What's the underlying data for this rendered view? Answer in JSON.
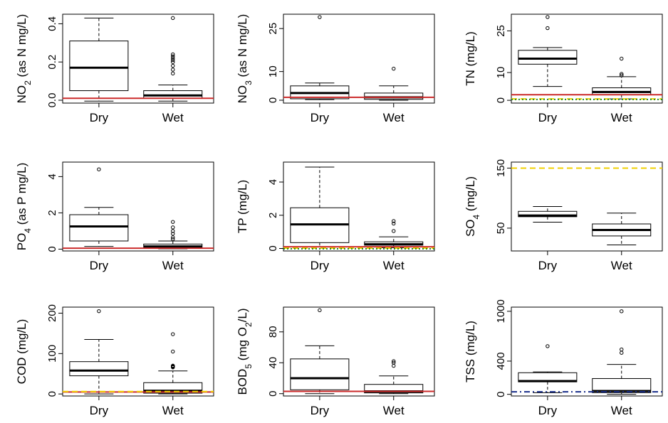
{
  "chart_data": [
    {
      "type": "boxplot",
      "ylabel_main": "NO",
      "ylabel_sub": "2",
      "ylabel_tail": " (as N mg/L)",
      "categories": [
        "Dry",
        "Wet"
      ],
      "yticks": [
        0.0,
        0.2,
        0.4
      ],
      "ytick_labels": [
        "0.0",
        "0.2",
        "0.4"
      ],
      "ylim": [
        -0.015,
        0.45
      ],
      "boxes": [
        {
          "category": "Dry",
          "whisker_low": -0.005,
          "q1": 0.05,
          "median": 0.17,
          "q3": 0.31,
          "whisker_high": 0.43,
          "outliers": []
        },
        {
          "category": "Wet",
          "whisker_low": -0.005,
          "q1": 0.01,
          "median": 0.025,
          "q3": 0.05,
          "whisker_high": 0.08,
          "outliers": [
            0.14,
            0.16,
            0.18,
            0.2,
            0.21,
            0.22,
            0.23,
            0.24,
            0.43
          ]
        }
      ],
      "reference_lines": [
        {
          "value": 0.01,
          "color": "#cc2b2b",
          "style": "solid"
        }
      ]
    },
    {
      "type": "boxplot",
      "ylabel_main": "NO",
      "ylabel_sub": "3",
      "ylabel_tail": " (as N mg/L)",
      "categories": [
        "Dry",
        "Wet"
      ],
      "yticks": [
        0,
        10,
        25
      ],
      "ytick_labels": [
        "0",
        "10",
        "25"
      ],
      "ylim": [
        -1,
        30
      ],
      "boxes": [
        {
          "category": "Dry",
          "whisker_low": 0.2,
          "q1": 0.5,
          "median": 2.5,
          "q3": 5,
          "whisker_high": 6,
          "outliers": [
            29
          ]
        },
        {
          "category": "Wet",
          "whisker_low": 0,
          "q1": 0.3,
          "median": 1,
          "q3": 2.5,
          "whisker_high": 5,
          "outliers": [
            11
          ]
        }
      ],
      "reference_lines": [
        {
          "value": 1,
          "color": "#cc2b2b",
          "style": "solid"
        }
      ]
    },
    {
      "type": "boxplot",
      "ylabel_main": "TN (mg/L)",
      "ylabel_sub": "",
      "ylabel_tail": "",
      "categories": [
        "Dry",
        "Wet"
      ],
      "yticks": [
        0,
        10,
        25
      ],
      "ytick_labels": [
        "0",
        "10",
        "25"
      ],
      "ylim": [
        -1,
        31
      ],
      "boxes": [
        {
          "category": "Dry",
          "whisker_low": 5,
          "q1": 13,
          "median": 15,
          "q3": 18,
          "whisker_high": 19,
          "outliers": [
            26,
            30
          ]
        },
        {
          "category": "Wet",
          "whisker_low": 0.5,
          "q1": 2,
          "median": 3,
          "q3": 4.5,
          "whisker_high": 8.5,
          "outliers": [
            9,
            9.5,
            15
          ]
        }
      ],
      "reference_lines": [
        {
          "value": 2,
          "color": "#cc2b2b",
          "style": "solid"
        },
        {
          "value": 0.5,
          "color": "#f0d000",
          "style": "dashed"
        },
        {
          "value": 0.3,
          "color": "#1f8a1f",
          "style": "dotted"
        }
      ]
    },
    {
      "type": "boxplot",
      "ylabel_main": "PO",
      "ylabel_sub": "4",
      "ylabel_tail": " (as P mg/L)",
      "categories": [
        "Dry",
        "Wet"
      ],
      "yticks": [
        0,
        2,
        4
      ],
      "ytick_labels": [
        "0",
        "2",
        "4"
      ],
      "ylim": [
        -0.1,
        4.8
      ],
      "boxes": [
        {
          "category": "Dry",
          "whisker_low": 0.15,
          "q1": 0.45,
          "median": 1.25,
          "q3": 1.9,
          "whisker_high": 2.3,
          "outliers": [
            4.4
          ]
        },
        {
          "category": "Wet",
          "whisker_low": 0.02,
          "q1": 0.08,
          "median": 0.15,
          "q3": 0.28,
          "whisker_high": 0.45,
          "outliers": [
            0.55,
            0.65,
            0.85,
            1.0,
            1.2,
            1.5
          ]
        }
      ],
      "reference_lines": [
        {
          "value": 0.05,
          "color": "#cc2b2b",
          "style": "solid"
        }
      ]
    },
    {
      "type": "boxplot",
      "ylabel_main": "TP (mg/L)",
      "ylabel_sub": "",
      "ylabel_tail": "",
      "categories": [
        "Dry",
        "Wet"
      ],
      "yticks": [
        0,
        2,
        4
      ],
      "ytick_labels": [
        "0",
        "2",
        "4"
      ],
      "ylim": [
        -0.15,
        5.2
      ],
      "boxes": [
        {
          "category": "Dry",
          "whisker_low": 0.1,
          "q1": 0.35,
          "median": 1.45,
          "q3": 2.45,
          "whisker_high": 4.9,
          "outliers": []
        },
        {
          "category": "Wet",
          "whisker_low": 0.05,
          "q1": 0.2,
          "median": 0.25,
          "q3": 0.4,
          "whisker_high": 0.7,
          "outliers": [
            1.05,
            1.5,
            1.65
          ]
        }
      ],
      "reference_lines": [
        {
          "value": 0.1,
          "color": "#cc2b2b",
          "style": "solid"
        },
        {
          "value": 0.02,
          "color": "#f0d000",
          "style": "dashed"
        },
        {
          "value": -0.02,
          "color": "#1f8a1f",
          "style": "dotted"
        }
      ]
    },
    {
      "type": "boxplot",
      "ylabel_main": "SO",
      "ylabel_sub": "4",
      "ylabel_tail": " (mg/L)",
      "categories": [
        "Dry",
        "Wet"
      ],
      "yticks": [
        50,
        150
      ],
      "ytick_labels": [
        "50",
        "150"
      ],
      "ylim": [
        12,
        160
      ],
      "boxes": [
        {
          "category": "Dry",
          "whisker_low": 60,
          "q1": 69,
          "median": 71,
          "q3": 78,
          "whisker_high": 86,
          "outliers": []
        },
        {
          "category": "Wet",
          "whisker_low": 22,
          "q1": 37,
          "median": 47,
          "q3": 57,
          "whisker_high": 75,
          "outliers": []
        }
      ],
      "reference_lines": [
        {
          "value": 150,
          "color": "#f0d000",
          "style": "dashed"
        }
      ]
    },
    {
      "type": "boxplot",
      "ylabel_main": "COD (mg/L)",
      "ylabel_sub": "",
      "ylabel_tail": "",
      "categories": [
        "Dry",
        "Wet"
      ],
      "yticks": [
        0,
        100,
        200
      ],
      "ytick_labels": [
        "0",
        "100",
        "200"
      ],
      "ylim": [
        -5,
        215
      ],
      "boxes": [
        {
          "category": "Dry",
          "whisker_low": 0,
          "q1": 45,
          "median": 58,
          "q3": 80,
          "whisker_high": 135,
          "outliers": [
            205
          ]
        },
        {
          "category": "Wet",
          "whisker_low": 0,
          "q1": 2,
          "median": 8,
          "q3": 28,
          "whisker_high": 57,
          "outliers": [
            66,
            67,
            68,
            69,
            70,
            105,
            148
          ]
        }
      ],
      "reference_lines": [
        {
          "value": 5,
          "color": "#cc2b2b",
          "style": "solid"
        },
        {
          "value": 6,
          "color": "#f0d000",
          "style": "dashed"
        }
      ]
    },
    {
      "type": "boxplot",
      "ylabel_main": "BOD",
      "ylabel_sub": "5",
      "ylabel_tail": " (mg O",
      "ylabel_sub2": "2",
      "ylabel_tail2": "/L)",
      "categories": [
        "Dry",
        "Wet"
      ],
      "yticks": [
        0,
        40,
        80
      ],
      "ytick_labels": [
        "0",
        "40",
        "80"
      ],
      "ylim": [
        -3,
        112
      ],
      "boxes": [
        {
          "category": "Dry",
          "whisker_low": 0,
          "q1": 5,
          "median": 20,
          "q3": 45,
          "whisker_high": 62,
          "outliers": [
            108
          ]
        },
        {
          "category": "Wet",
          "whisker_low": 0,
          "q1": 1,
          "median": 3,
          "q3": 12,
          "whisker_high": 23,
          "outliers": [
            36,
            40,
            42
          ]
        }
      ],
      "reference_lines": [
        {
          "value": 3,
          "color": "#cc2b2b",
          "style": "solid"
        }
      ]
    },
    {
      "type": "boxplot",
      "ylabel_main": "TSS (mg/L)",
      "ylabel_sub": "",
      "ylabel_tail": "",
      "categories": [
        "Dry",
        "Wet"
      ],
      "yticks": [
        0,
        400,
        1000
      ],
      "ytick_labels": [
        "0",
        "400",
        "1000"
      ],
      "ylim": [
        -20,
        1050
      ],
      "boxes": [
        {
          "category": "Dry",
          "whisker_low": 20,
          "q1": 150,
          "median": 160,
          "q3": 260,
          "whisker_high": 270,
          "outliers": [
            580
          ]
        },
        {
          "category": "Wet",
          "whisker_low": 0,
          "q1": 20,
          "median": 40,
          "q3": 190,
          "whisker_high": 360,
          "outliers": [
            500,
            540,
            1000
          ]
        }
      ],
      "reference_lines": [
        {
          "value": 30,
          "color": "#1a2f8a",
          "style": "dashdot"
        }
      ]
    }
  ]
}
